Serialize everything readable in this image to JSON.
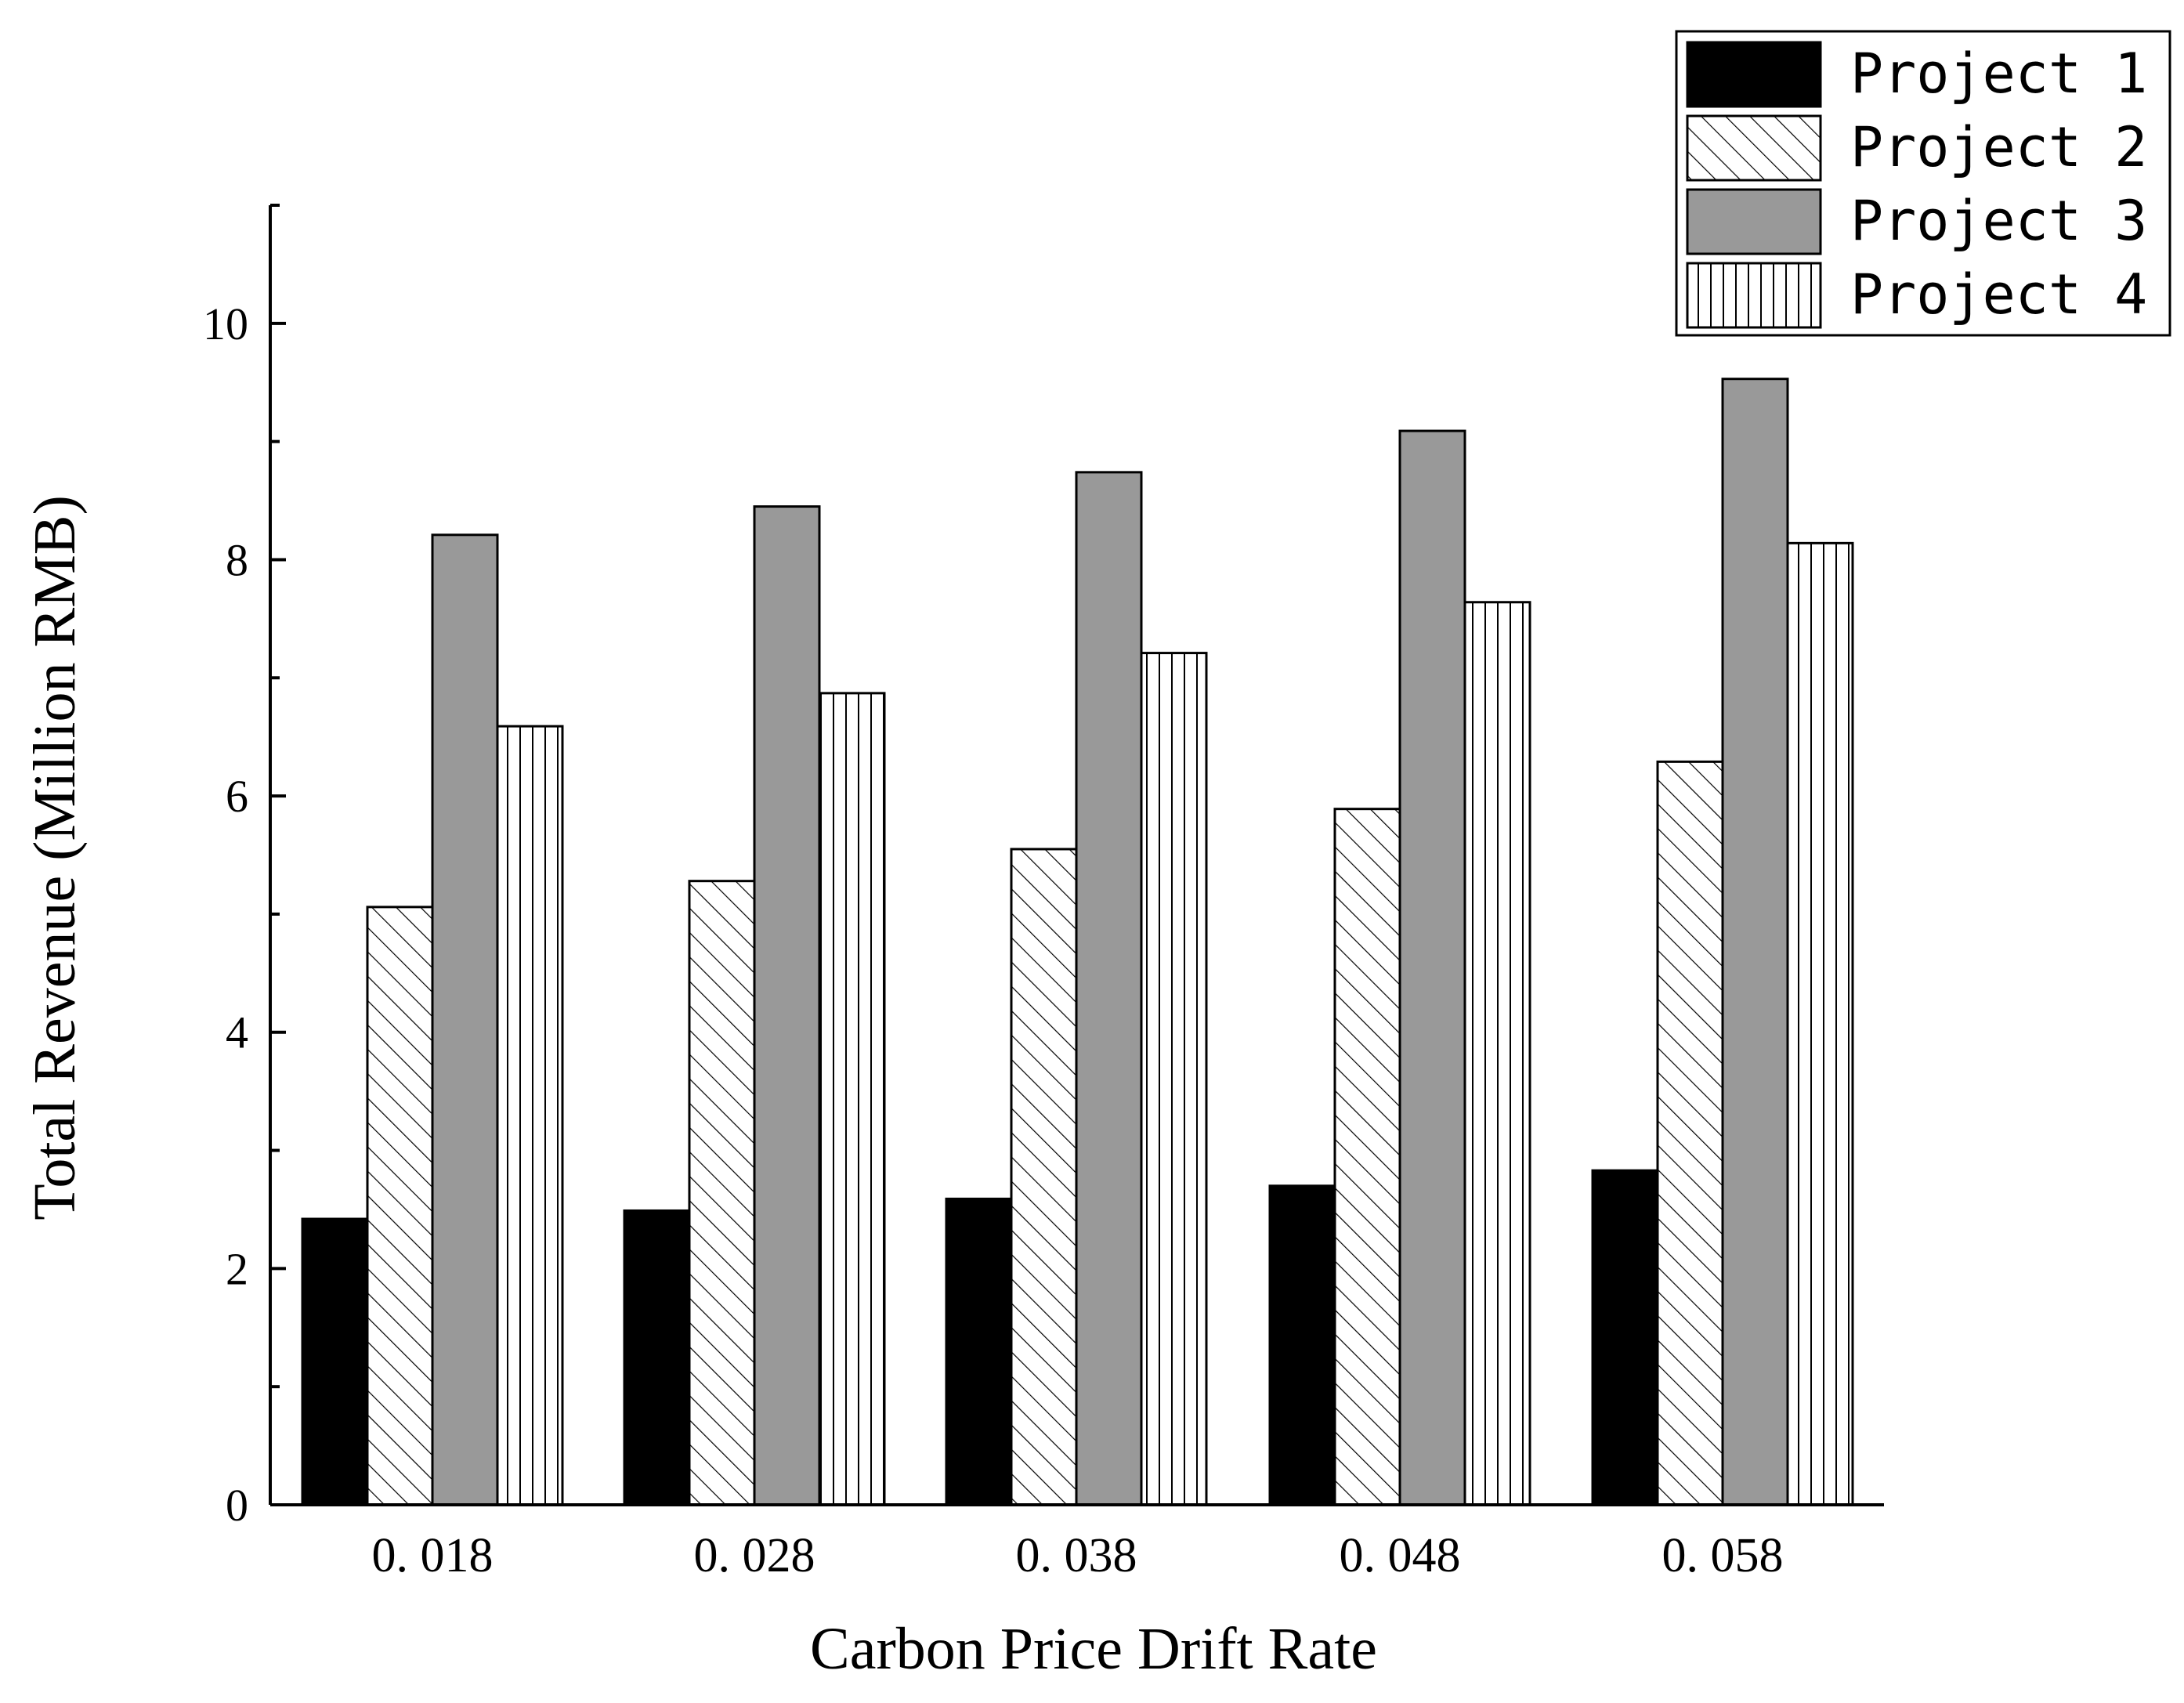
{
  "chart_data": {
    "type": "bar",
    "title": "",
    "xlabel": "Carbon Price Drift Rate",
    "ylabel": "Total Revenue (Million RMB)",
    "categories": [
      "0. 018",
      "0. 028",
      "0. 038",
      "0. 048",
      "0. 058"
    ],
    "ylim": [
      0,
      11
    ],
    "yticks": [
      0,
      2,
      4,
      6,
      8,
      10
    ],
    "ytick_labels": [
      "0",
      "2",
      "4",
      "6",
      "8",
      "10"
    ],
    "grid": false,
    "legend_position": "top-right",
    "series": [
      {
        "name": "Project 1",
        "pattern": "solid-black",
        "values": [
          2.42,
          2.49,
          2.59,
          2.7,
          2.83
        ]
      },
      {
        "name": "Project 2",
        "pattern": "diagonal-hatch",
        "values": [
          5.06,
          5.28,
          5.55,
          5.89,
          6.29
        ]
      },
      {
        "name": "Project 3",
        "pattern": "solid-gray",
        "values": [
          8.21,
          8.45,
          8.74,
          9.09,
          9.53
        ]
      },
      {
        "name": "Project 4",
        "pattern": "vertical-hatch",
        "values": [
          6.59,
          6.87,
          7.21,
          7.64,
          8.14
        ]
      }
    ],
    "colors": {
      "axis": "#000000",
      "project1": "#000000",
      "project3": "#999999",
      "background": "#ffffff"
    }
  }
}
